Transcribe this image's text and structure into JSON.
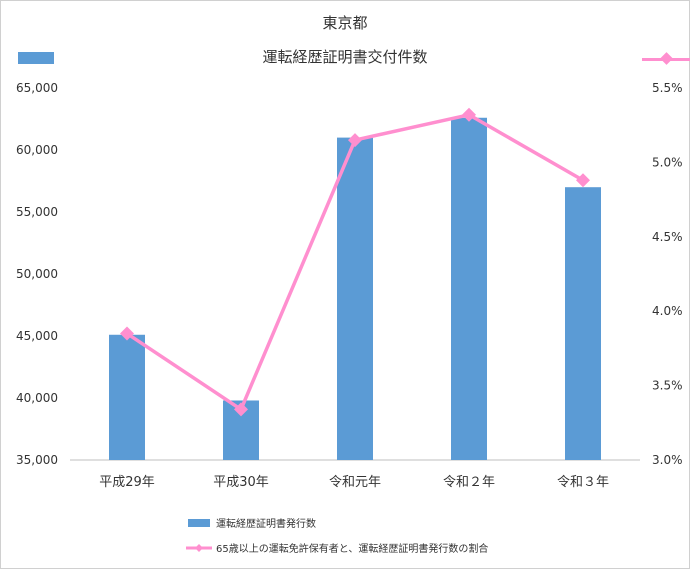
{
  "chart_data": {
    "type": "bar",
    "title": "東京都",
    "subtitle": "運転経歴証明書交付件数",
    "categories": [
      "平成29年",
      "平成30年",
      "令和元年",
      "令和２年",
      "令和３年"
    ],
    "series": [
      {
        "name": "運転経歴証明書発行数",
        "type": "bar",
        "axis": "left",
        "color": "#5b9bd5",
        "values": [
          45100,
          39800,
          61000,
          62600,
          57000
        ]
      },
      {
        "name": "65歳以上の運転免許保有者と、運転経歴証明書発行数の割合",
        "type": "line",
        "axis": "right",
        "color": "#ff8fcf",
        "values": [
          3.85,
          3.34,
          5.15,
          5.32,
          4.88
        ]
      }
    ],
    "y_left": {
      "ylim": [
        35000,
        65000
      ],
      "ticks": [
        "35,000",
        "40,000",
        "45,000",
        "50,000",
        "55,000",
        "60,000",
        "65,000"
      ]
    },
    "y_right": {
      "ylim": [
        3.0,
        5.5
      ],
      "ticks": [
        "3.0%",
        "3.5%",
        "4.0%",
        "4.5%",
        "5.0%",
        "5.5%"
      ]
    },
    "grid": false,
    "legend": "bottom"
  }
}
